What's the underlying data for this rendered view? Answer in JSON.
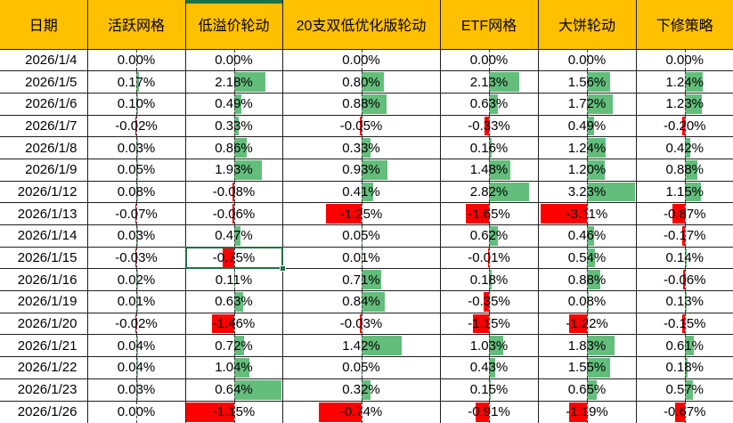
{
  "grid": {
    "columns": [
      {
        "id": "date",
        "label": "日期"
      },
      {
        "id": "active-grid",
        "label": "活跃网格"
      },
      {
        "id": "low-premium-rotation",
        "label": "低溢价轮动",
        "selected_column": true
      },
      {
        "id": "top20-double-low-optimized-rotation",
        "label": "20支双低优化版轮动"
      },
      {
        "id": "etf-grid",
        "label": "ETF网格"
      },
      {
        "id": "big-pie-rotation",
        "label": "大饼轮动"
      },
      {
        "id": "downward-revision-strategy",
        "label": "下修策略"
      }
    ],
    "rows": [
      {
        "date": "2026/1/4",
        "values": [
          "0.00%",
          "0.00%",
          "0.00%",
          "0.00%",
          "0.00%",
          "0.00%"
        ]
      },
      {
        "date": "2026/1/5",
        "values": [
          "0.17%",
          "2.18%",
          "0.80%",
          "2.13%",
          "1.56%",
          "1.24%"
        ]
      },
      {
        "date": "2026/1/6",
        "values": [
          "0.10%",
          "0.49%",
          "0.88%",
          "0.63%",
          "1.72%",
          "1.23%"
        ]
      },
      {
        "date": "2026/1/7",
        "values": [
          "-0.02%",
          "0.33%",
          "-0.05%",
          "-0.33%",
          "0.49%",
          "-0.20%"
        ]
      },
      {
        "date": "2026/1/8",
        "values": [
          "0.03%",
          "0.86%",
          "0.33%",
          "0.16%",
          "1.24%",
          "0.42%"
        ]
      },
      {
        "date": "2026/1/9",
        "values": [
          "0.05%",
          "1.93%",
          "0.93%",
          "1.48%",
          "1.20%",
          "0.88%"
        ]
      },
      {
        "date": "2026/1/12",
        "values": [
          "0.08%",
          "-0.08%",
          "0.41%",
          "2.82%",
          "3.23%",
          "1.15%"
        ]
      },
      {
        "date": "2026/1/13",
        "values": [
          "-0.07%",
          "-0.06%",
          "-1.25%",
          "-1.65%",
          "-3.11%",
          "-0.87%"
        ]
      },
      {
        "date": "2026/1/14",
        "values": [
          "0.03%",
          "0.47%",
          "0.05%",
          "0.62%",
          "0.46%",
          "-0.17%"
        ]
      },
      {
        "date": "2026/1/15",
        "values": [
          "-0.03%",
          "-0.75%",
          "0.01%",
          "-0.01%",
          "0.54%",
          "0.14%"
        ]
      },
      {
        "date": "2026/1/16",
        "values": [
          "0.02%",
          "0.11%",
          "0.71%",
          "0.18%",
          "0.88%",
          "-0.06%"
        ]
      },
      {
        "date": "2026/1/19",
        "values": [
          "0.01%",
          "0.63%",
          "0.84%",
          "-0.35%",
          "0.08%",
          "0.13%"
        ]
      },
      {
        "date": "2026/1/20",
        "values": [
          "-0.02%",
          "-1.46%",
          "-0.03%",
          "-1.15%",
          "-1.22%",
          "-0.15%"
        ]
      },
      {
        "date": "2026/1/21",
        "values": [
          "0.04%",
          "0.72%",
          "1.42%",
          "1.03%",
          "1.83%",
          "0.61%"
        ]
      },
      {
        "date": "2026/1/22",
        "values": [
          "0.04%",
          "1.04%",
          "0.05%",
          "0.43%",
          "1.55%",
          "0.18%"
        ]
      },
      {
        "date": "2026/1/23",
        "values": [
          "0.03%",
          "0.64%",
          "0.32%",
          "0.15%",
          "0.65%",
          "0.57%"
        ]
      },
      {
        "date": "2026/1/26",
        "values": [
          "0.00%",
          "-1.15%",
          "-0.74%",
          "-0.91%",
          "-1.19%",
          "-0.67%"
        ]
      }
    ]
  },
  "selection": {
    "row_date": "2026/1/15",
    "column_label": "低溢价轮动",
    "value": "-0.75%"
  },
  "colors": {
    "header_bg": "#FFC000",
    "positive_bar": "#63BE7B",
    "negative_bar": "#FF0000",
    "selection_green": "#1E7145",
    "grid_line": "#1F1F1F"
  }
}
